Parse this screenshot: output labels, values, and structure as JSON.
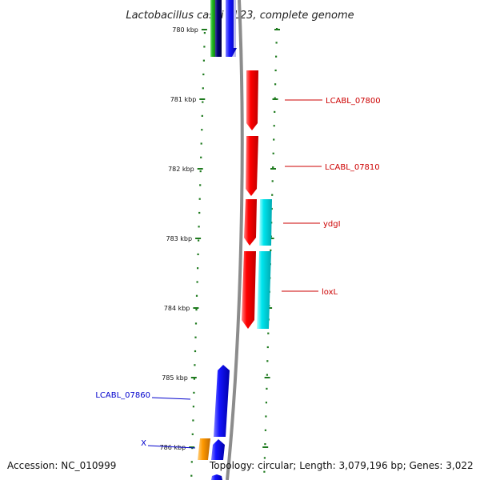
{
  "title": "Lactobacillus casei BL23, complete genome",
  "footer": {
    "accession": "Accession: NC_010999",
    "topology": "Topology: circular; Length: 3,079,196 bp; Genes: 3,022"
  },
  "colors": {
    "backbone": "#8c8c8c",
    "tick": "#1e7a1e",
    "red": "#ff0000",
    "cyan": "#00e5ee",
    "blue": "#1414ff",
    "green": "#22bb22",
    "orange": "#ff9900",
    "navy": "#000070",
    "label_red": "#cc0000",
    "label_blue": "#0000cc"
  },
  "ticks": [
    "780 kbp",
    "781 kbp",
    "782 kbp",
    "783 kbp",
    "784 kbp",
    "785 kbp",
    "786 kbp"
  ],
  "genes": [
    {
      "label": "",
      "color": "green"
    },
    {
      "label": "",
      "color": "navy"
    },
    {
      "label": "",
      "color": "blue"
    },
    {
      "label": "LCABL_07800",
      "color": "red"
    },
    {
      "label": "LCABL_07810",
      "color": "red"
    },
    {
      "label": "ydgI",
      "color": "red"
    },
    {
      "label": "",
      "color": "cyan"
    },
    {
      "label": "loxL",
      "color": "red"
    },
    {
      "label": "",
      "color": "cyan"
    },
    {
      "label": "LCABL_07860",
      "color": "blue"
    },
    {
      "label": "X",
      "color": "orange"
    },
    {
      "label": "",
      "color": "blue"
    },
    {
      "label": "",
      "color": "blue"
    }
  ]
}
